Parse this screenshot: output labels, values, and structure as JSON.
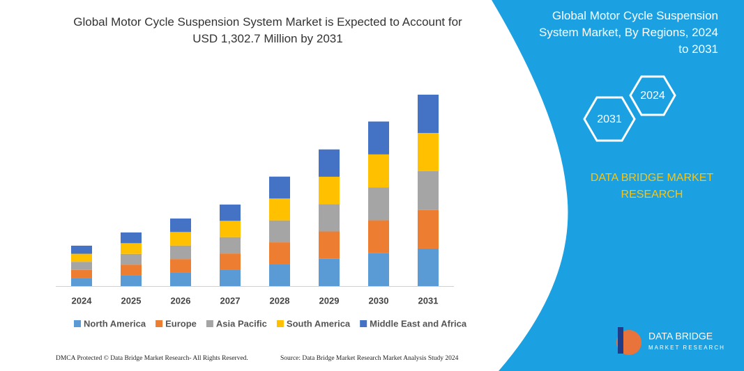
{
  "chart_data": {
    "type": "stacked-bar",
    "title": "Global Motor Cycle Suspension System Market is Expected to Account for USD 1,302.7 Million by 2031",
    "categories": [
      "2024",
      "2025",
      "2026",
      "2027",
      "2028",
      "2029",
      "2030",
      "2031"
    ],
    "series": [
      {
        "name": "North America",
        "color": "#5b9bd5",
        "values": [
          55,
          73,
          92,
          111,
          149,
          186,
          224,
          256
        ]
      },
      {
        "name": "Europe",
        "color": "#ed7d31",
        "values": [
          55,
          73,
          92,
          111,
          149,
          186,
          224,
          261
        ]
      },
      {
        "name": "Asia Pacific",
        "color": "#a5a5a5",
        "values": [
          55,
          73,
          92,
          111,
          149,
          186,
          224,
          265
        ]
      },
      {
        "name": "South America",
        "color": "#ffc000",
        "values": [
          55,
          73,
          92,
          111,
          149,
          186,
          224,
          260
        ]
      },
      {
        "name": "Middle East and Africa",
        "color": "#4472c4",
        "values": [
          55,
          73,
          92,
          111,
          149,
          186,
          224,
          260.7
        ]
      }
    ],
    "ylim": [
      0,
      1302.7
    ]
  },
  "panel": {
    "title": "Global Motor Cycle Suspension System Market, By Regions, 2024 to 2031",
    "hex_start": "2024",
    "hex_end": "2031",
    "brand": "DATA BRIDGE MARKET RESEARCH"
  },
  "logo": {
    "name": "DATA BRIDGE",
    "tagline": "MARKET RESEARCH"
  },
  "footer": {
    "left": "DMCA Protected © Data Bridge Market Research-  All Rights Reserved.",
    "right": "Source: Data Bridge Market Research  Market Analysis Study 2024"
  }
}
